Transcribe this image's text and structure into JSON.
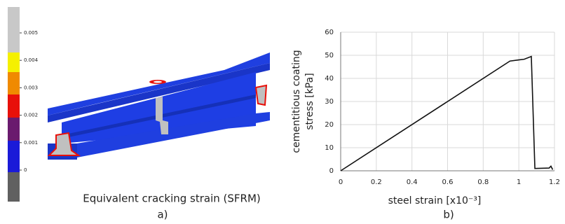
{
  "panel_a": {
    "colorbar_ticks": [
      0.005,
      0.004,
      0.003,
      0.002,
      0.001,
      0
    ],
    "colorbar_lim": [
      0,
      0.005
    ],
    "caption": "Equivalent cracking strain (SFRM)",
    "panel_label": "a)"
  },
  "chart_data": {
    "type": "line",
    "xlabel": "steel strain [x10⁻³]",
    "ylabel": [
      "cementitious coating",
      "stress [kPa]"
    ],
    "x": [
      0,
      0.95,
      1.0,
      1.03,
      1.07,
      1.09,
      1.17,
      1.18,
      1.19
    ],
    "values": [
      0,
      47.5,
      48,
      48.3,
      49.5,
      1,
      1.2,
      2,
      0.5
    ],
    "color": "#111111",
    "xlim": [
      0,
      1.2
    ],
    "xticks": [
      0,
      0.2,
      0.4,
      0.6,
      0.8,
      1,
      1.2
    ],
    "ylim": [
      0,
      60
    ],
    "yticks": [
      0,
      10,
      20,
      30,
      40,
      50,
      60
    ],
    "grid": true,
    "panel_label": "b)"
  }
}
